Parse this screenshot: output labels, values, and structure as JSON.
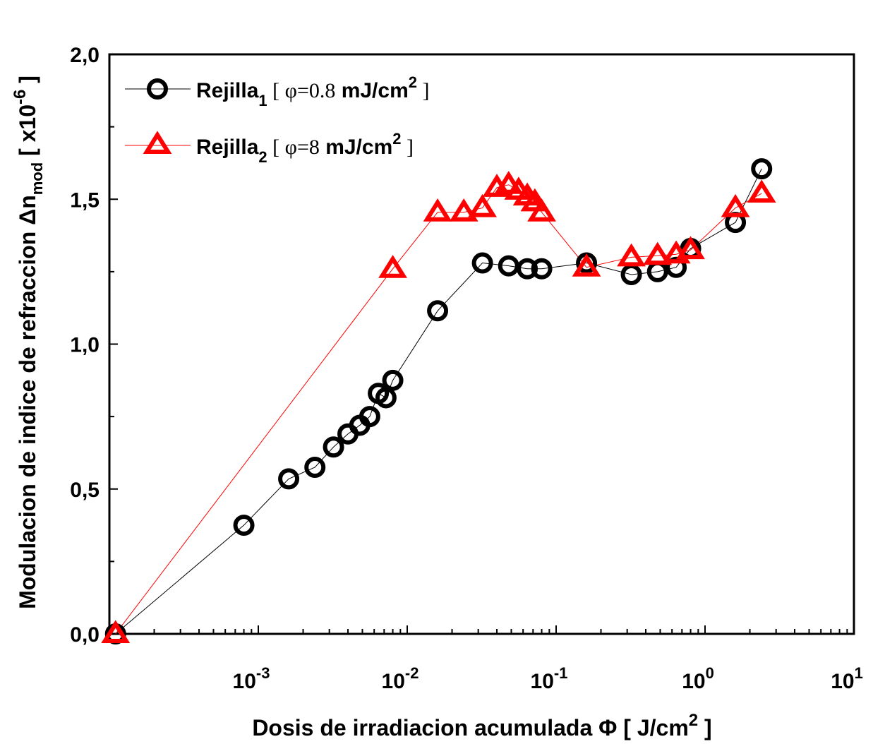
{
  "chart_data": {
    "type": "scatter",
    "xscale": "log",
    "xlim": [
      0.0001,
      10
    ],
    "ylim": [
      0.0,
      2.0
    ],
    "ylabel_prefix": "Modulacion de indice de refraccion Δn",
    "ylabel_sub": "mod",
    "ylabel_unit_pre": "[ x10",
    "ylabel_unit_exp": "-6",
    "ylabel_unit_post": "]",
    "xlabel_prefix": "Dosis de irradiacion acumulada Φ [ J/cm",
    "xlabel_exp": "2",
    "xlabel_post": " ]",
    "y_ticks": [
      {
        "value": 0.0,
        "label": "0,0"
      },
      {
        "value": 0.5,
        "label": "0,5"
      },
      {
        "value": 1.0,
        "label": "1,0"
      },
      {
        "value": 1.5,
        "label": "1,5"
      },
      {
        "value": 2.0,
        "label": "2,0"
      }
    ],
    "x_ticks": [
      {
        "value": 0.001,
        "base": "10",
        "exp": "-3"
      },
      {
        "value": 0.01,
        "base": "10",
        "exp": "-2"
      },
      {
        "value": 0.1,
        "base": "10",
        "exp": "-1"
      },
      {
        "value": 1,
        "base": "10",
        "exp": "0"
      },
      {
        "value": 10,
        "base": "10",
        "exp": "1"
      }
    ],
    "series": [
      {
        "name": "Rejilla",
        "sub": "1",
        "legend_open": " [ ",
        "legend_phi": "φ=0.8",
        "legend_unit": " mJ/cm",
        "legend_exp": "2",
        "legend_close": " ]",
        "marker": "circle",
        "color": "#000000",
        "x": [
          0.00011,
          0.0008,
          0.0016,
          0.0024,
          0.0032,
          0.004,
          0.0048,
          0.0056,
          0.0064,
          0.0072,
          0.008,
          0.016,
          0.032,
          0.048,
          0.064,
          0.08,
          0.16,
          0.32,
          0.48,
          0.64,
          0.8,
          1.6,
          2.4
        ],
        "y": [
          0.0,
          0.375,
          0.535,
          0.575,
          0.645,
          0.69,
          0.72,
          0.75,
          0.83,
          0.815,
          0.875,
          1.115,
          1.28,
          1.27,
          1.26,
          1.26,
          1.28,
          1.24,
          1.25,
          1.265,
          1.33,
          1.42,
          1.605
        ]
      },
      {
        "name": "Rejilla",
        "sub": "2",
        "legend_open": " [ ",
        "legend_phi": "φ=8",
        "legend_unit": " mJ/cm",
        "legend_exp": "2",
        "legend_close": " ]",
        "marker": "triangle",
        "color": "#ff0000",
        "x": [
          0.00011,
          0.008,
          0.016,
          0.024,
          0.032,
          0.04,
          0.048,
          0.056,
          0.064,
          0.072,
          0.08,
          0.16,
          0.32,
          0.48,
          0.64,
          0.8,
          1.6,
          2.4
        ],
        "y": [
          0.0,
          1.26,
          1.455,
          1.455,
          1.47,
          1.54,
          1.55,
          1.53,
          1.51,
          1.49,
          1.455,
          1.265,
          1.3,
          1.305,
          1.31,
          1.325,
          1.47,
          1.52
        ]
      }
    ]
  }
}
